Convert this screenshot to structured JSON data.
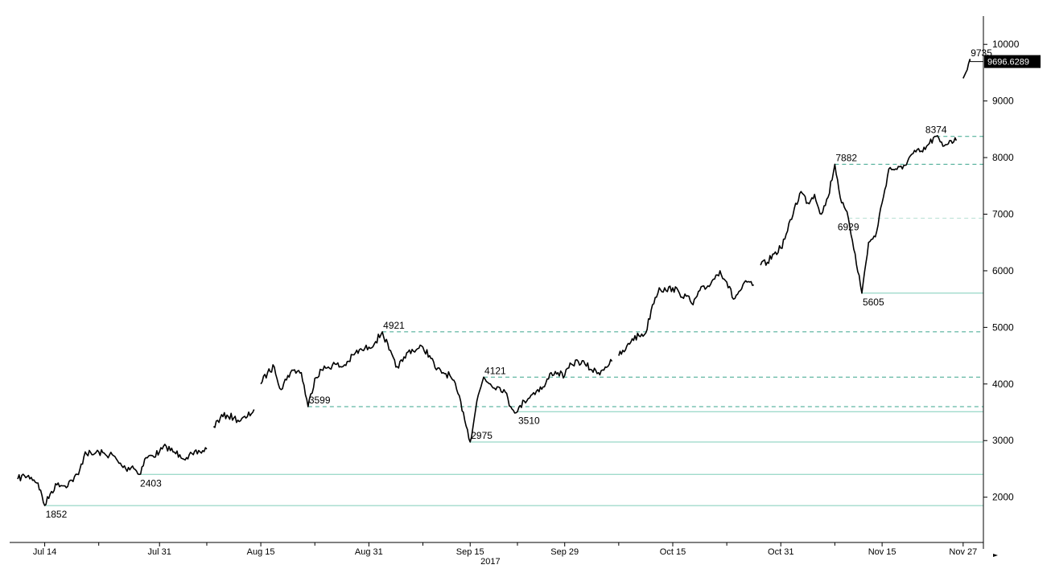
{
  "chart_data": {
    "type": "line",
    "title": "",
    "xlabel": "",
    "ylabel": "",
    "year_label": "2017",
    "x_ticks": [
      {
        "date": "2017-07-14",
        "label": "Jul 14"
      },
      {
        "date": "2017-07-31",
        "label": "Jul 31"
      },
      {
        "date": "2017-08-15",
        "label": "Aug 15"
      },
      {
        "date": "2017-08-31",
        "label": "Aug 31"
      },
      {
        "date": "2017-09-15",
        "label": "Sep 15"
      },
      {
        "date": "2017-09-29",
        "label": "Sep 29"
      },
      {
        "date": "2017-10-15",
        "label": "Oct 15"
      },
      {
        "date": "2017-10-31",
        "label": "Oct 31"
      },
      {
        "date": "2017-11-15",
        "label": "Nov 15"
      },
      {
        "date": "2017-11-27",
        "label": "Nov 27"
      }
    ],
    "y_ticks": [
      2000,
      3000,
      4000,
      5000,
      6000,
      7000,
      8000,
      9000,
      10000
    ],
    "ylim": [
      1200,
      10500
    ],
    "xlim": [
      "2017-07-10",
      "2017-11-30"
    ],
    "y_axis_side": "right",
    "grid": false,
    "line_color": "#000000",
    "reference_color": "#3aa58c",
    "last_value_label": "9696.6289",
    "last_value": 9696.6289,
    "series": [
      {
        "segments": [
          [
            [
              "2017-07-10",
              2320
            ],
            [
              "2017-07-11",
              2380
            ],
            [
              "2017-07-12",
              2350
            ],
            [
              "2017-07-13",
              2250
            ],
            [
              "2017-07-14",
              1852
            ],
            [
              "2017-07-15",
              2100
            ],
            [
              "2017-07-16",
              2250
            ],
            [
              "2017-07-17",
              2200
            ],
            [
              "2017-07-18",
              2300
            ],
            [
              "2017-07-19",
              2400
            ],
            [
              "2017-07-20",
              2800
            ],
            [
              "2017-07-21",
              2750
            ],
            [
              "2017-07-22",
              2800
            ],
            [
              "2017-07-23",
              2750
            ],
            [
              "2017-07-24",
              2750
            ],
            [
              "2017-07-25",
              2600
            ],
            [
              "2017-07-26",
              2500
            ],
            [
              "2017-07-27",
              2550
            ],
            [
              "2017-07-28",
              2403
            ],
            [
              "2017-07-29",
              2700
            ],
            [
              "2017-07-30",
              2730
            ],
            [
              "2017-07-31",
              2800
            ],
            [
              "2017-08-01",
              2900
            ],
            [
              "2017-08-02",
              2800
            ],
            [
              "2017-08-03",
              2750
            ],
            [
              "2017-08-04",
              2700
            ],
            [
              "2017-08-05",
              2750
            ],
            [
              "2017-08-06",
              2800
            ],
            [
              "2017-08-07",
              2850
            ]
          ],
          [
            [
              "2017-08-08",
              3250
            ],
            [
              "2017-08-09",
              3400
            ],
            [
              "2017-08-10",
              3450
            ],
            [
              "2017-08-11",
              3400
            ],
            [
              "2017-08-12",
              3350
            ],
            [
              "2017-08-13",
              3420
            ],
            [
              "2017-08-14",
              3550
            ]
          ],
          [
            [
              "2017-08-15",
              4000
            ],
            [
              "2017-08-16",
              4200
            ],
            [
              "2017-08-17",
              4300
            ],
            [
              "2017-08-18",
              3900
            ],
            [
              "2017-08-19",
              4150
            ],
            [
              "2017-08-20",
              4250
            ],
            [
              "2017-08-21",
              4200
            ],
            [
              "2017-08-22",
              3599
            ],
            [
              "2017-08-23",
              4100
            ],
            [
              "2017-08-24",
              4250
            ],
            [
              "2017-08-25",
              4300
            ],
            [
              "2017-08-26",
              4350
            ],
            [
              "2017-08-27",
              4300
            ],
            [
              "2017-08-28",
              4400
            ],
            [
              "2017-08-29",
              4550
            ],
            [
              "2017-08-30",
              4600
            ],
            [
              "2017-08-31",
              4650
            ],
            [
              "2017-09-01",
              4750
            ],
            [
              "2017-09-02",
              4921
            ],
            [
              "2017-09-03",
              4600
            ],
            [
              "2017-09-04",
              4300
            ],
            [
              "2017-09-05",
              4400
            ],
            [
              "2017-09-06",
              4600
            ],
            [
              "2017-09-07",
              4600
            ],
            [
              "2017-09-08",
              4650
            ],
            [
              "2017-09-09",
              4500
            ],
            [
              "2017-09-10",
              4250
            ],
            [
              "2017-09-11",
              4200
            ],
            [
              "2017-09-12",
              4150
            ],
            [
              "2017-09-13",
              3900
            ],
            [
              "2017-09-14",
              3500
            ],
            [
              "2017-09-15",
              2975
            ],
            [
              "2017-09-16",
              3700
            ],
            [
              "2017-09-17",
              4121
            ],
            [
              "2017-09-18",
              4000
            ],
            [
              "2017-09-19",
              3950
            ],
            [
              "2017-09-20",
              3900
            ],
            [
              "2017-09-21",
              3600
            ],
            [
              "2017-09-22",
              3510
            ],
            [
              "2017-09-23",
              3700
            ],
            [
              "2017-09-24",
              3800
            ],
            [
              "2017-09-25",
              3900
            ],
            [
              "2017-09-26",
              3950
            ],
            [
              "2017-09-27",
              4200
            ],
            [
              "2017-09-28",
              4200
            ],
            [
              "2017-09-29",
              4150
            ],
            [
              "2017-09-30",
              4350
            ],
            [
              "2017-10-01",
              4400
            ],
            [
              "2017-10-02",
              4350
            ],
            [
              "2017-10-03",
              4250
            ],
            [
              "2017-10-04",
              4200
            ],
            [
              "2017-10-05",
              4300
            ],
            [
              "2017-10-06",
              4400
            ]
          ],
          [
            [
              "2017-10-07",
              4500
            ],
            [
              "2017-10-08",
              4600
            ],
            [
              "2017-10-09",
              4800
            ],
            [
              "2017-10-10",
              4850
            ],
            [
              "2017-10-11",
              4900
            ],
            [
              "2017-10-12",
              5400
            ],
            [
              "2017-10-13",
              5700
            ],
            [
              "2017-10-14",
              5650
            ],
            [
              "2017-10-15",
              5700
            ],
            [
              "2017-10-16",
              5600
            ],
            [
              "2017-10-17",
              5550
            ],
            [
              "2017-10-18",
              5400
            ],
            [
              "2017-10-19",
              5650
            ],
            [
              "2017-10-20",
              5700
            ],
            [
              "2017-10-21",
              5850
            ],
            [
              "2017-10-22",
              6000
            ],
            [
              "2017-10-23",
              5800
            ],
            [
              "2017-10-24",
              5500
            ],
            [
              "2017-10-25",
              5650
            ],
            [
              "2017-10-26",
              5800
            ],
            [
              "2017-10-27",
              5750
            ]
          ],
          [
            [
              "2017-10-28",
              6100
            ],
            [
              "2017-10-29",
              6150
            ],
            [
              "2017-10-30",
              6300
            ],
            [
              "2017-10-31",
              6400
            ],
            [
              "2017-11-01",
              6700
            ],
            [
              "2017-11-02",
              7100
            ],
            [
              "2017-11-03",
              7400
            ],
            [
              "2017-11-04",
              7200
            ],
            [
              "2017-11-05",
              7350
            ],
            [
              "2017-11-06",
              7000
            ],
            [
              "2017-11-07",
              7300
            ],
            [
              "2017-11-08",
              7882
            ],
            [
              "2017-11-09",
              7200
            ],
            [
              "2017-11-10",
              6929
            ],
            [
              "2017-11-11",
              6300
            ],
            [
              "2017-11-12",
              5605
            ],
            [
              "2017-11-13",
              6500
            ],
            [
              "2017-11-14",
              6600
            ],
            [
              "2017-11-15",
              7200
            ],
            [
              "2017-11-16",
              7800
            ],
            [
              "2017-11-17",
              7800
            ],
            [
              "2017-11-18",
              7800
            ],
            [
              "2017-11-19",
              8000
            ],
            [
              "2017-11-20",
              8100
            ],
            [
              "2017-11-21",
              8100
            ],
            [
              "2017-11-22",
              8250
            ],
            [
              "2017-11-23",
              8374
            ],
            [
              "2017-11-24",
              8200
            ],
            [
              "2017-11-25",
              8300
            ],
            [
              "2017-11-26",
              8300
            ]
          ],
          [
            [
              "2017-11-27",
              9400
            ],
            [
              "2017-11-28",
              9735
            ],
            [
              "2017-11-28",
              9696.6289
            ]
          ]
        ]
      }
    ],
    "annotations": [
      {
        "label": "1852",
        "date": "2017-07-14",
        "value": 1852,
        "line": "solid",
        "text_anchor": "start",
        "text_pos": "below"
      },
      {
        "label": "2403",
        "date": "2017-07-28",
        "value": 2403,
        "line": "solid",
        "text_anchor": "start",
        "text_pos": "below"
      },
      {
        "label": "2975",
        "date": "2017-09-15",
        "value": 2975,
        "line": "solid",
        "text_anchor": "start",
        "text_pos": "above"
      },
      {
        "label": "3510",
        "date": "2017-09-22",
        "value": 3510,
        "line": "solid",
        "text_anchor": "start",
        "text_pos": "below"
      },
      {
        "label": "3599",
        "date": "2017-08-22",
        "value": 3599,
        "line": "dashed",
        "text_anchor": "start",
        "text_pos": "above"
      },
      {
        "label": "4121",
        "date": "2017-09-17",
        "value": 4121,
        "line": "dashed",
        "text_anchor": "start",
        "text_pos": "above"
      },
      {
        "label": "4921",
        "date": "2017-09-02",
        "value": 4921,
        "line": "dashed",
        "text_anchor": "start",
        "text_pos": "above"
      },
      {
        "label": "5605",
        "date": "2017-11-12",
        "value": 5605,
        "line": "solid",
        "text_anchor": "start",
        "text_pos": "below"
      },
      {
        "label": "6929",
        "date": "2017-11-10",
        "value": 6929,
        "line": "dashed-light",
        "text_anchor": "middle",
        "text_pos": "below"
      },
      {
        "label": "7882",
        "date": "2017-11-08",
        "value": 7882,
        "line": "dashed",
        "text_anchor": "start",
        "text_pos": "above"
      },
      {
        "label": "8374",
        "date": "2017-11-23",
        "value": 8374,
        "line": "dashed",
        "text_anchor": "middle",
        "text_pos": "above"
      },
      {
        "label": "9735",
        "date": "2017-11-28",
        "value": 9735,
        "line": "none",
        "text_anchor": "start",
        "text_pos": "above"
      }
    ]
  }
}
